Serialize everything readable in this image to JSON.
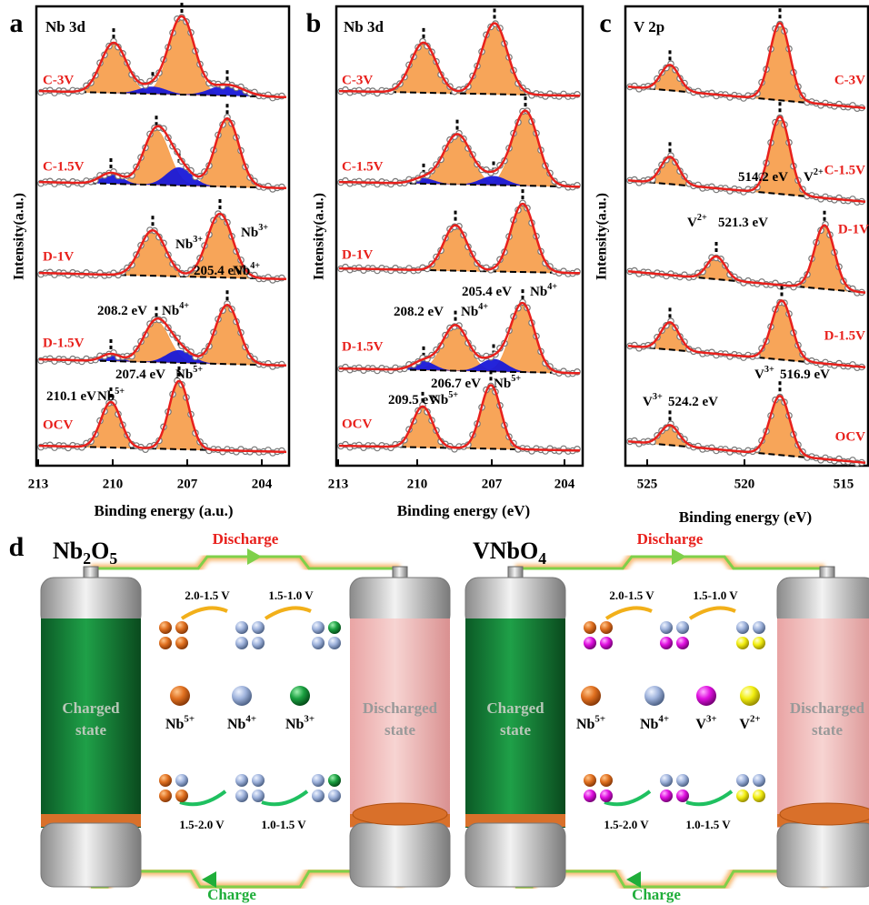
{
  "panel_a": {
    "label": "a",
    "title": "Nb 3d",
    "ylabel": "Intensity(a.u.)",
    "xlabel": "Binding energy (a.u.)",
    "xticks": [
      213,
      210,
      207,
      204
    ],
    "spectra": [
      "C-3V",
      "C-1.5V",
      "D-1V",
      "D-1.5V",
      "OCV"
    ],
    "annotations": [
      {
        "text": "Nb",
        "sup": "3+"
      },
      {
        "text": "Nb",
        "sup": "3+"
      },
      {
        "text": "205.4 eV"
      },
      {
        "text": "Nb",
        "sup": "4+"
      },
      {
        "text": "208.2 eV"
      },
      {
        "text": "Nb",
        "sup": "4+"
      },
      {
        "text": "207.4 eV"
      },
      {
        "text": "Nb",
        "sup": "5+"
      },
      {
        "text": "210.1 eV"
      },
      {
        "text": "Nb",
        "sup": "5+"
      }
    ]
  },
  "panel_b": {
    "label": "b",
    "title": "Nb 3d",
    "ylabel": "Intensity(a.u.)",
    "xlabel": "Binding energy (eV)",
    "xticks": [
      213,
      210,
      207,
      204
    ],
    "spectra": [
      "C-3V",
      "C-1.5V",
      "D-1V",
      "D-1.5V",
      "OCV"
    ],
    "annotations": [
      {
        "text": "205.4 eV"
      },
      {
        "text": "Nb",
        "sup": "4+"
      },
      {
        "text": "208.2 eV"
      },
      {
        "text": "Nb",
        "sup": "4+"
      },
      {
        "text": "206.7 eV"
      },
      {
        "text": "Nb",
        "sup": "5+"
      },
      {
        "text": "209.5 eV"
      },
      {
        "text": "Nb",
        "sup": "5+"
      }
    ]
  },
  "panel_c": {
    "label": "c",
    "title": "V 2p",
    "ylabel": "Intensity(a.u.)",
    "xlabel": "Binding energy (eV)",
    "xticks": [
      525,
      520,
      515
    ],
    "spectra": [
      "C-3V",
      "C-1.5V",
      "D-1V",
      "D-1.5V",
      "OCV"
    ],
    "annotations": [
      {
        "text": "514.2 eV"
      },
      {
        "text": "V",
        "sup": "2+"
      },
      {
        "text": "V",
        "sup": "2+"
      },
      {
        "text": "521.3 eV"
      },
      {
        "text": "V",
        "sup": "3+"
      },
      {
        "text": "516.9 eV"
      },
      {
        "text": "V",
        "sup": "3+"
      },
      {
        "text": "524.2 eV"
      }
    ]
  },
  "panel_d": {
    "label": "d",
    "sides": [
      {
        "title": [
          {
            "text": "Nb"
          },
          {
            "sub": "2"
          },
          {
            "text": "O"
          },
          {
            "sub": "5"
          }
        ],
        "discharge": "Discharge",
        "charge": "Charge",
        "charged_state": [
          "Charged",
          "state"
        ],
        "discharged_state": [
          "Discharged",
          "state"
        ],
        "top_voltages": [
          "2.0-1.5 V",
          "1.5-1.0 V"
        ],
        "bottom_voltages": [
          "1.5-2.0 V",
          "1.0-1.5 V"
        ],
        "species": [
          {
            "text": "Nb",
            "sup": "5+"
          },
          {
            "text": "Nb",
            "sup": "4+"
          },
          {
            "text": "Nb",
            "sup": "3+"
          }
        ]
      },
      {
        "title": [
          {
            "text": "VNbO"
          },
          {
            "sub": "4"
          }
        ],
        "discharge": "Discharge",
        "charge": "Charge",
        "charged_state": [
          "Charged",
          "state"
        ],
        "discharged_state": [
          "Discharged",
          "state"
        ],
        "top_voltages": [
          "2.0-1.5 V",
          "1.5-1.0 V"
        ],
        "bottom_voltages": [
          "1.5-2.0 V",
          "1.0-1.5 V"
        ],
        "species": [
          {
            "text": "Nb",
            "sup": "5+"
          },
          {
            "text": "Nb",
            "sup": "4+"
          },
          {
            "text": "V",
            "sup": "3+"
          },
          {
            "text": "V",
            "sup": "2+"
          }
        ]
      }
    ]
  }
}
